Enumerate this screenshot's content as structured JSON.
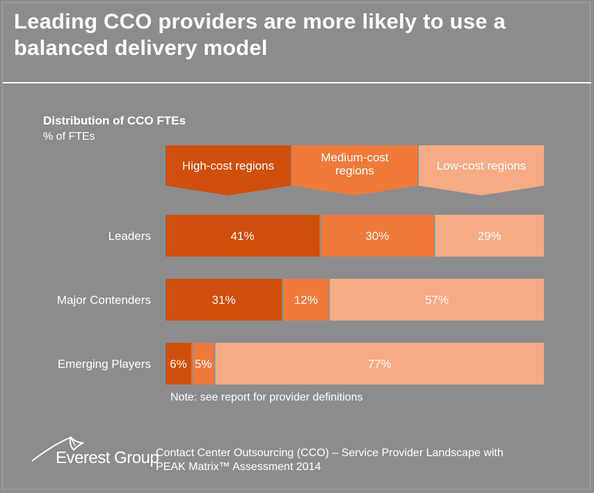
{
  "header": {
    "title": "Leading CCO providers are more likely to use a balanced delivery model"
  },
  "colors": {
    "background": "#8c8c8c",
    "high_cost": "#d04f0c",
    "medium_cost": "#f07a3a",
    "low_cost": "#f5ab84",
    "text": "#ffffff"
  },
  "chart_data": {
    "type": "bar",
    "orientation": "horizontal",
    "stacked": true,
    "title": "Distribution of CCO FTEs",
    "ylabel": "% of FTEs",
    "xlim": [
      0,
      100
    ],
    "categories": [
      "Leaders",
      "Major Contenders",
      "Emerging Players"
    ],
    "series": [
      {
        "name": "High-cost regions",
        "values": [
          41,
          31,
          6
        ],
        "labels": [
          "41%",
          "31%",
          "6%"
        ]
      },
      {
        "name": "Medium-cost regions",
        "values": [
          30,
          12,
          5
        ],
        "labels": [
          "30%",
          "12%",
          "5%"
        ]
      },
      {
        "name": "Low-cost regions",
        "values": [
          29,
          57,
          77
        ],
        "labels": [
          "29%",
          "57%",
          "77%"
        ]
      }
    ],
    "legend": [
      "High-cost regions",
      "Medium-cost regions",
      "Low-cost regions"
    ],
    "legend_placement": "top"
  },
  "note": "Note: see report for provider definitions",
  "footer": {
    "logo_text": "Everest Group",
    "source_line1": "Contact Center Outsourcing (CCO) – Service Provider Landscape with",
    "source_line2": "PEAK Matrix™ Assessment 2014"
  }
}
